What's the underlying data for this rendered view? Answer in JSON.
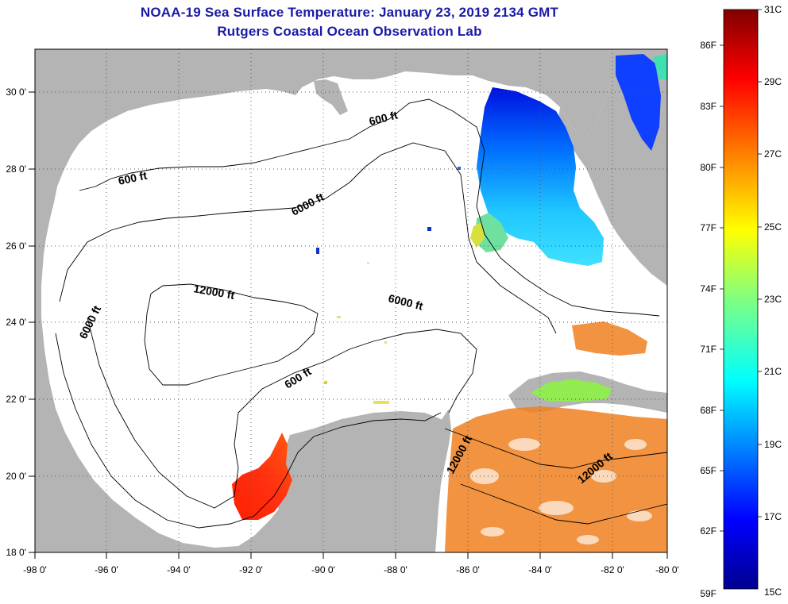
{
  "header": {
    "title_line1": "NOAA-19 Sea Surface Temperature:  January 23, 2019 2134 GMT",
    "title_line2": "Rutgers Coastal Ocean Observation Lab"
  },
  "axes": {
    "longitude_labels": [
      "-98 0'",
      "-96 0'",
      "-94 0'",
      "-92 0'",
      "-90 0'",
      "-88 0'",
      "-86 0'",
      "-84 0'",
      "-82 0'",
      "-80 0'"
    ],
    "latitude_labels": [
      "30 0'",
      "28 0'",
      "26 0'",
      "24 0'",
      "22 0'",
      "20 0'",
      "18 0'"
    ]
  },
  "contours": {
    "labels": [
      "600 ft",
      "600 ft",
      "6000 ft",
      "12000 ft",
      "6000 ft",
      "6000 ft",
      "600 ft",
      "12000 ft",
      "12000 ft"
    ]
  },
  "colorbar": {
    "fahrenheit_labels": [
      "86F",
      "83F",
      "80F",
      "77F",
      "74F",
      "71F",
      "68F",
      "65F",
      "62F",
      "59F"
    ],
    "celsius_labels": [
      "31C",
      "29C",
      "27C",
      "25C",
      "23C",
      "21C",
      "19C",
      "17C",
      "15C"
    ]
  },
  "colors": {
    "title": "#1a1aa8",
    "land": "#b4b4b4",
    "water": "#ffffff",
    "colormap": [
      "#00008f",
      "#0000ff",
      "#0080ff",
      "#00ffff",
      "#80ff80",
      "#ffff00",
      "#ff8000",
      "#ff0000",
      "#800000"
    ]
  }
}
